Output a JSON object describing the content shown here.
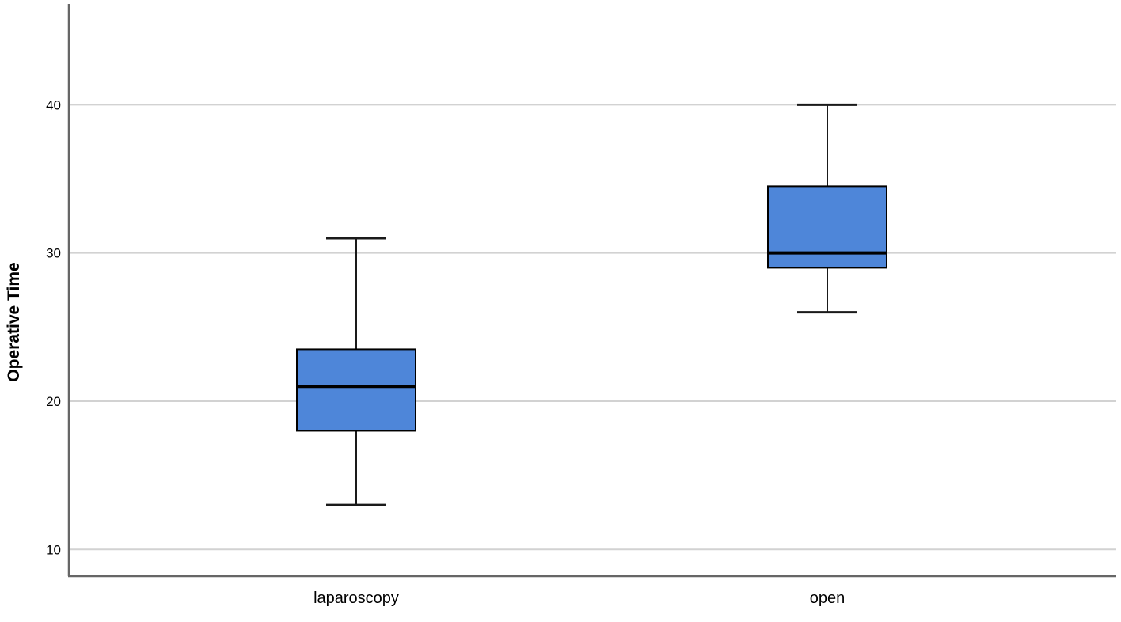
{
  "chart_data": {
    "type": "box",
    "title": "",
    "ylabel": "Operative Time",
    "xlabel": "",
    "categories": [
      "laparoscopy",
      "open"
    ],
    "yticks": [
      10,
      20,
      30,
      40
    ],
    "ylim": [
      8.2,
      46.8
    ],
    "grid": "horizontal-only",
    "legend": "none",
    "boxes": [
      {
        "category": "laparoscopy",
        "min": 13,
        "q1": 18,
        "median": 21,
        "q3": 23.5,
        "max": 31
      },
      {
        "category": "open",
        "min": 26,
        "q1": 29,
        "median": 30,
        "q3": 34.5,
        "max": 40
      }
    ],
    "colors": {
      "box_fill": "#4e86d9",
      "box_border": "#000000",
      "median": "#000000",
      "whisker": "#1a1a1a",
      "gridline": "#d2d2d2",
      "axis": "#666666",
      "text": "#000000",
      "background": "#ffffff"
    }
  }
}
